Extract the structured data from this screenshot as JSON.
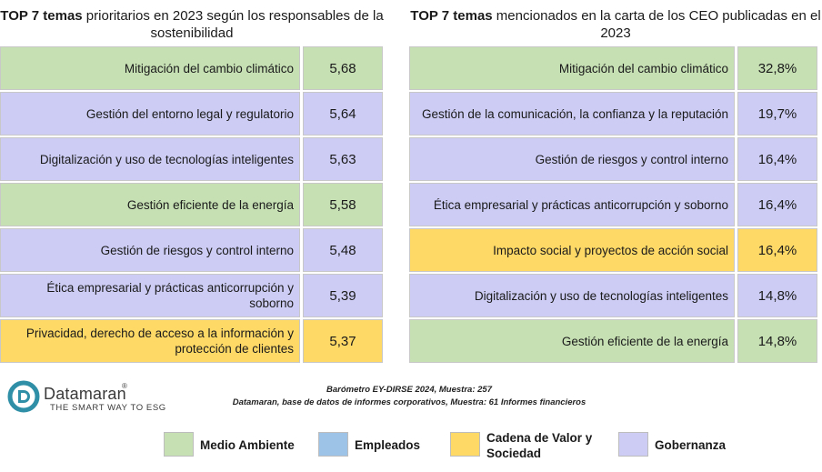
{
  "colors": {
    "medio_ambiente": "#c6e0b4",
    "empleados": "#9dc3e6",
    "cadena_valor": "#ffd966",
    "gobernanza": "#ccccf5"
  },
  "left_panel": {
    "title_bold": "TOP 7 temas",
    "title_rest": " prioritarios en 2023 según los responsables de la sostenibilidad",
    "rows": [
      {
        "label": "Mitigación del cambio climático",
        "value": "5,68",
        "category": "medio_ambiente"
      },
      {
        "label": "Gestión del entorno legal y regulatorio",
        "value": "5,64",
        "category": "gobernanza"
      },
      {
        "label": "Digitalización y uso de tecnologías inteligentes",
        "value": "5,63",
        "category": "gobernanza"
      },
      {
        "label": "Gestión eficiente de la energía",
        "value": "5,58",
        "category": "medio_ambiente"
      },
      {
        "label": "Gestión de riesgos y control interno",
        "value": "5,48",
        "category": "gobernanza"
      },
      {
        "label": "Ética empresarial y prácticas anticorrupción y soborno",
        "value": "5,39",
        "category": "gobernanza"
      },
      {
        "label": "Privacidad, derecho de acceso a la información y protección de clientes",
        "value": "5,37",
        "category": "cadena_valor"
      }
    ]
  },
  "right_panel": {
    "title_bold": "TOP 7 temas",
    "title_rest": " mencionados en la carta de los CEO publicadas en el 2023",
    "rows": [
      {
        "label": "Mitigación del cambio climático",
        "value": "32,8%",
        "category": "medio_ambiente"
      },
      {
        "label": "Gestión de la comunicación, la confianza y la reputación",
        "value": "19,7%",
        "category": "gobernanza"
      },
      {
        "label": "Gestión de riesgos y control interno",
        "value": "16,4%",
        "category": "gobernanza"
      },
      {
        "label": "Ética empresarial y prácticas anticorrupción y soborno",
        "value": "16,4%",
        "category": "gobernanza"
      },
      {
        "label": "Impacto social y proyectos de acción social",
        "value": "16,4%",
        "category": "cadena_valor"
      },
      {
        "label": "Digitalización y uso de tecnologías inteligentes",
        "value": "14,8%",
        "category": "gobernanza"
      },
      {
        "label": "Gestión eficiente de la energía",
        "value": "14,8%",
        "category": "medio_ambiente"
      }
    ]
  },
  "logo": {
    "name": "Datamaran",
    "trademark": "®",
    "tagline": "THE SMART WAY TO ESG"
  },
  "sources": {
    "line1": "Barómetro EY-DIRSE 2024, Muestra: 257",
    "line2": "Datamaran, base de datos de informes corporativos, Muestra: 61 Informes financieros"
  },
  "legend": [
    {
      "label": "Medio Ambiente",
      "category": "medio_ambiente"
    },
    {
      "label": "Empleados",
      "category": "empleados"
    },
    {
      "label": "Cadena de Valor y Sociedad",
      "category": "cadena_valor"
    },
    {
      "label": "Gobernanza",
      "category": "gobernanza"
    }
  ]
}
